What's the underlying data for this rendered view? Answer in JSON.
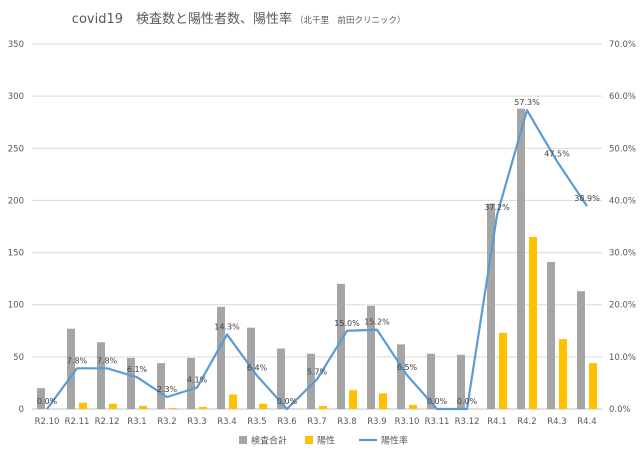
{
  "chart_data": {
    "type": "bar",
    "title": "covid19　検査数と陽性者数、陽性率",
    "subtitle": "（北千里　前田クリニック）",
    "categories": [
      "R2.10",
      "R2.11",
      "R2.12",
      "R3.1",
      "R3.2",
      "R3.3",
      "R3.4",
      "R3.5",
      "R3.6",
      "R3.7",
      "R3.8",
      "R3.9",
      "R3.10",
      "R3.11",
      "R3.12",
      "R4.1",
      "R4.2",
      "R4.3",
      "R4.4"
    ],
    "series": [
      {
        "name": "検査合計",
        "kind": "bar",
        "axis": "left",
        "color": "#a5a5a5",
        "values": [
          20,
          77,
          64,
          49,
          44,
          49,
          98,
          78,
          58,
          53,
          120,
          99,
          62,
          53,
          52,
          197,
          288,
          141,
          113
        ]
      },
      {
        "name": "陽性",
        "kind": "bar",
        "axis": "left",
        "color": "#ffc000",
        "values": [
          0,
          6,
          5,
          3,
          1,
          2,
          14,
          5,
          0,
          3,
          18,
          15,
          4,
          0,
          0,
          73,
          165,
          67,
          44
        ]
      },
      {
        "name": "陽性率",
        "kind": "line",
        "axis": "right",
        "color": "#5b9bd5",
        "values": [
          0.0,
          7.8,
          7.8,
          6.1,
          2.3,
          4.1,
          14.3,
          6.4,
          0.0,
          5.7,
          15.0,
          15.2,
          6.5,
          0.0,
          0.0,
          37.2,
          57.3,
          47.5,
          38.9
        ],
        "labels": [
          "0.0%",
          "7.8%",
          "7.8%",
          "6.1%",
          "2.3%",
          "4.1%",
          "14.3%",
          "6.4%",
          "0.0%",
          "5.7%",
          "15.0%",
          "15.2%",
          "6.5%",
          "0.0%",
          "0.0%",
          "37.2%",
          "57.3%",
          "47.5%",
          "38.9%"
        ]
      }
    ],
    "y_left": {
      "min": 0,
      "max": 350,
      "ticks": [
        "0",
        "50",
        "100",
        "150",
        "200",
        "250",
        "300",
        "350"
      ]
    },
    "y_right": {
      "min": 0,
      "max": 70,
      "ticks": [
        "0.0%",
        "10.0%",
        "20.0%",
        "30.0%",
        "40.0%",
        "50.0%",
        "60.0%",
        "70.0%"
      ]
    },
    "grid": true,
    "legend_position": "bottom"
  }
}
